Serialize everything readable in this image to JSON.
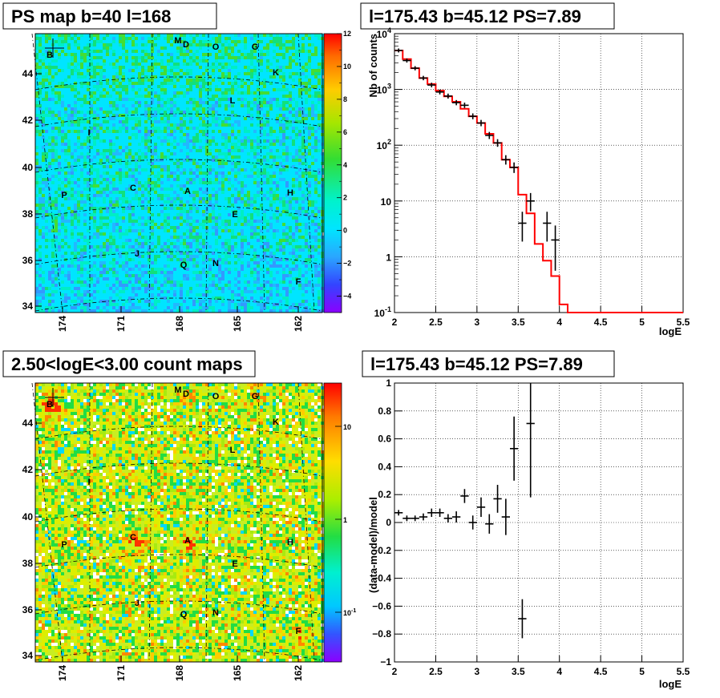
{
  "colors": {
    "model_line": "#ff0000",
    "data_marker": "#000000",
    "grid": "#000000"
  },
  "chart_data": [
    {
      "type": "heatmap",
      "title": "PS map b=40 l=168",
      "colorscale": "linear",
      "zlim": [
        -5,
        12
      ],
      "z_ticks": [
        "12",
        "10",
        "8",
        "6",
        "4",
        "2",
        "0",
        "−2",
        "−4"
      ],
      "y_ticks": [
        "34",
        "36",
        "38",
        "40",
        "42",
        "44"
      ],
      "x_ticks": [
        "174",
        "171",
        "168",
        "165",
        "162"
      ],
      "sources": [
        "B",
        "M",
        "D",
        "O",
        "G",
        "K",
        "L",
        "I",
        "P",
        "C",
        "A",
        "H",
        "E",
        "J",
        "Q",
        "N",
        "F"
      ]
    },
    {
      "type": "line",
      "title": "l=175.43 b=45.12 PS=7.89",
      "xlabel": "logE",
      "ylabel": "Nb of counts",
      "xlim": [
        2,
        5.5
      ],
      "ylim": [
        0.1,
        10000
      ],
      "yscale": "log",
      "grid": true,
      "x_ticks": [
        "2",
        "2.5",
        "3",
        "3.5",
        "4",
        "4.5",
        "5",
        "5.5"
      ],
      "y_ticks": [
        "10^4",
        "10^3",
        "10^2",
        "10",
        "1",
        "10^-1"
      ],
      "series": [
        {
          "values_x": [
            2.05,
            2.15,
            2.25,
            2.35,
            2.45,
            2.55,
            2.65,
            2.75,
            2.85,
            2.95,
            3.05,
            3.15,
            3.25,
            3.35,
            3.45,
            3.55,
            3.65,
            3.75,
            3.85,
            3.95
          ],
          "values": [
            5000,
            3300,
            2400,
            1600,
            1200,
            900,
            760,
            580,
            520,
            330,
            250,
            150,
            110,
            55,
            40,
            4,
            10,
            null,
            4,
            2
          ],
          "errors": [
            80,
            60,
            50,
            40,
            35,
            30,
            28,
            24,
            23,
            18,
            16,
            12,
            10,
            7,
            6,
            2,
            3,
            0,
            2,
            1.4
          ]
        },
        {
          "bins": [
            2.0,
            2.1,
            2.2,
            2.3,
            2.4,
            2.5,
            2.6,
            2.7,
            2.8,
            2.9,
            3.0,
            3.1,
            3.2,
            3.3,
            3.4,
            3.5,
            3.6,
            3.7,
            3.8,
            3.9,
            4.0,
            4.1,
            5.5
          ],
          "values": [
            5000,
            3500,
            2400,
            1600,
            1250,
            950,
            750,
            600,
            450,
            330,
            250,
            160,
            110,
            55,
            40,
            13,
            6,
            1.7,
            0.85,
            0.45,
            0.14,
            0.1
          ]
        }
      ]
    },
    {
      "type": "heatmap",
      "title": "2.50<logE<3.00 count maps",
      "colorscale": "log",
      "z_ticks": [
        "10",
        "1",
        "10^-1"
      ],
      "y_ticks": [
        "34",
        "36",
        "38",
        "40",
        "42",
        "44"
      ],
      "x_ticks": [
        "174",
        "171",
        "168",
        "165",
        "162"
      ],
      "sources": [
        "B",
        "M",
        "D",
        "O",
        "G",
        "K",
        "L",
        "I",
        "P",
        "C",
        "A",
        "H",
        "E",
        "J",
        "Q",
        "N",
        "F"
      ]
    },
    {
      "type": "scatter",
      "title": "l=175.43 b=45.12 PS=7.89",
      "xlabel": "logE",
      "ylabel": "(data-model)/model",
      "xlim": [
        2,
        5.5
      ],
      "ylim": [
        -1,
        1
      ],
      "grid": true,
      "x_ticks": [
        "2",
        "2.5",
        "3",
        "3.5",
        "4",
        "4.5",
        "5",
        "5.5"
      ],
      "y_ticks": [
        "1",
        "0.8",
        "0.6",
        "0.4",
        "0.2",
        "0",
        "−0.2",
        "−0.4",
        "−0.6",
        "−0.8",
        "−1"
      ],
      "x": [
        2.05,
        2.15,
        2.25,
        2.35,
        2.45,
        2.55,
        2.65,
        2.75,
        2.85,
        2.95,
        3.05,
        3.15,
        3.25,
        3.35,
        3.45,
        3.55,
        3.65
      ],
      "values": [
        0.07,
        0.03,
        0.03,
        0.04,
        0.07,
        0.07,
        0.03,
        0.04,
        0.19,
        0.0,
        0.11,
        -0.01,
        0.17,
        0.04,
        0.53,
        -0.69,
        0.71
      ],
      "errors": [
        0.02,
        0.02,
        0.02,
        0.025,
        0.03,
        0.03,
        0.03,
        0.04,
        0.05,
        0.05,
        0.07,
        0.07,
        0.1,
        0.13,
        0.23,
        0.14,
        0.53
      ]
    }
  ]
}
